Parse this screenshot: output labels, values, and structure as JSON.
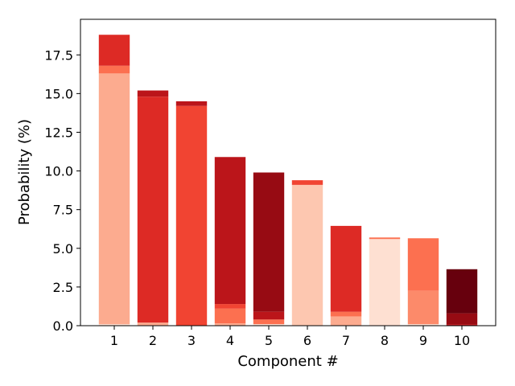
{
  "chart_data": {
    "type": "bar",
    "stacked": true,
    "xlabel": "Component #",
    "ylabel": "Probability (%)",
    "ylim": [
      0,
      19.8
    ],
    "categories": [
      "1",
      "2",
      "3",
      "4",
      "5",
      "6",
      "7",
      "8",
      "9",
      "10"
    ],
    "yticks": [
      "0.0",
      "2.5",
      "5.0",
      "7.5",
      "10.0",
      "12.5",
      "15.0",
      "17.5"
    ],
    "bars": [
      {
        "category": "1",
        "segments": [
          {
            "value": 0.1,
            "color": "#fee0d2"
          },
          {
            "value": 16.2,
            "color": "#fcab8f"
          },
          {
            "value": 0.5,
            "color": "#fc7050"
          },
          {
            "value": 2.0,
            "color": "#dd2a25"
          }
        ]
      },
      {
        "category": "2",
        "segments": [
          {
            "value": 0.2,
            "color": "#fcab8f"
          },
          {
            "value": 14.6,
            "color": "#dd2a25"
          },
          {
            "value": 0.4,
            "color": "#bb151a"
          }
        ]
      },
      {
        "category": "3",
        "segments": [
          {
            "value": 14.2,
            "color": "#f14432"
          },
          {
            "value": 0.3,
            "color": "#bb151a"
          }
        ]
      },
      {
        "category": "4",
        "segments": [
          {
            "value": 0.15,
            "color": "#fcab8f"
          },
          {
            "value": 0.95,
            "color": "#fc7050"
          },
          {
            "value": 0.3,
            "color": "#f14432"
          },
          {
            "value": 9.5,
            "color": "#bb151a"
          }
        ]
      },
      {
        "category": "5",
        "segments": [
          {
            "value": 0.1,
            "color": "#fee0d2"
          },
          {
            "value": 0.3,
            "color": "#fc7050"
          },
          {
            "value": 0.5,
            "color": "#bb151a"
          },
          {
            "value": 9.0,
            "color": "#970b13"
          }
        ]
      },
      {
        "category": "6",
        "segments": [
          {
            "value": 9.1,
            "color": "#fdc7b0"
          },
          {
            "value": 0.3,
            "color": "#f14432"
          }
        ]
      },
      {
        "category": "7",
        "segments": [
          {
            "value": 0.6,
            "color": "#fcab8f"
          },
          {
            "value": 0.3,
            "color": "#fc7050"
          },
          {
            "value": 5.55,
            "color": "#dd2a25"
          }
        ]
      },
      {
        "category": "8",
        "segments": [
          {
            "value": 5.6,
            "color": "#fee0d2"
          },
          {
            "value": 0.1,
            "color": "#fc7050"
          }
        ]
      },
      {
        "category": "9",
        "segments": [
          {
            "value": 0.1,
            "color": "#fee0d2"
          },
          {
            "value": 2.15,
            "color": "#fc8a6a"
          },
          {
            "value": 3.4,
            "color": "#fc7050"
          }
        ]
      },
      {
        "category": "10",
        "segments": [
          {
            "value": 0.1,
            "color": "#bb151a"
          },
          {
            "value": 0.7,
            "color": "#970b13"
          },
          {
            "value": 2.85,
            "color": "#67000d"
          }
        ]
      }
    ]
  }
}
